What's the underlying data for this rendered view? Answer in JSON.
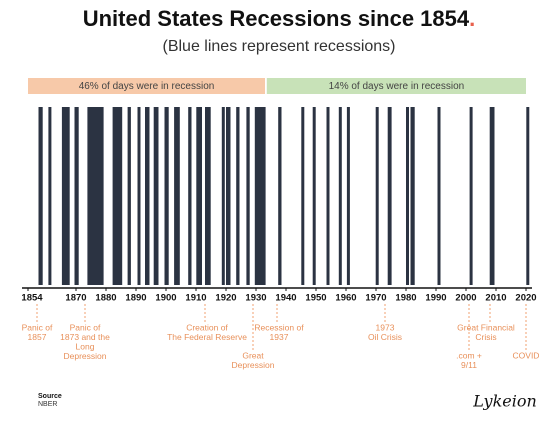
{
  "chart_data": {
    "type": "timeline",
    "title": "United States Recessions since 1854",
    "title_mark": ".",
    "subtitle": "(Blue lines represent recessions)",
    "color": "#2b3342",
    "xlim": [
      1852,
      2022
    ],
    "xticks": [
      1854,
      1870,
      1880,
      1890,
      1900,
      1910,
      1920,
      1930,
      1940,
      1950,
      1960,
      1970,
      1980,
      1990,
      2000,
      2010,
      2020
    ],
    "periods": [
      {
        "label": "46% of days were in recession",
        "start": 1854,
        "end": 1933,
        "color": "#f7c9a9"
      },
      {
        "label": "14% of days were in recession",
        "start": 1933.6,
        "end": 2020,
        "color": "#c8e2b8"
      }
    ],
    "recessions": [
      {
        "start": 1857.5,
        "end": 1858.9
      },
      {
        "start": 1860.8,
        "end": 1861.5
      },
      {
        "start": 1865.3,
        "end": 1867.9
      },
      {
        "start": 1869.5,
        "end": 1870.9
      },
      {
        "start": 1873.8,
        "end": 1879.2
      },
      {
        "start": 1882.2,
        "end": 1885.4
      },
      {
        "start": 1887.2,
        "end": 1888.3
      },
      {
        "start": 1890.5,
        "end": 1891.4
      },
      {
        "start": 1893.0,
        "end": 1894.5
      },
      {
        "start": 1895.9,
        "end": 1897.5
      },
      {
        "start": 1899.5,
        "end": 1900.9
      },
      {
        "start": 1902.7,
        "end": 1904.6
      },
      {
        "start": 1907.4,
        "end": 1908.5
      },
      {
        "start": 1910.1,
        "end": 1912.0
      },
      {
        "start": 1913.0,
        "end": 1914.9
      },
      {
        "start": 1918.6,
        "end": 1919.2
      },
      {
        "start": 1920.0,
        "end": 1921.5
      },
      {
        "start": 1923.4,
        "end": 1924.5
      },
      {
        "start": 1926.8,
        "end": 1927.9
      },
      {
        "start": 1929.6,
        "end": 1933.2
      },
      {
        "start": 1937.4,
        "end": 1938.5
      },
      {
        "start": 1945.1,
        "end": 1945.8
      },
      {
        "start": 1948.9,
        "end": 1949.8
      },
      {
        "start": 1953.5,
        "end": 1954.4
      },
      {
        "start": 1957.6,
        "end": 1958.3
      },
      {
        "start": 1960.3,
        "end": 1961.1
      },
      {
        "start": 1969.9,
        "end": 1970.9
      },
      {
        "start": 1973.9,
        "end": 1975.2
      },
      {
        "start": 1980.0,
        "end": 1980.5
      },
      {
        "start": 1981.5,
        "end": 1982.9
      },
      {
        "start": 1990.5,
        "end": 1991.2
      },
      {
        "start": 2001.2,
        "end": 2001.9
      },
      {
        "start": 2007.9,
        "end": 2009.5
      },
      {
        "start": 2020.1,
        "end": 2020.3
      }
    ],
    "annotations": [
      {
        "x": 1857,
        "lines": [
          "Panic of",
          "1857"
        ]
      },
      {
        "x": 1873,
        "lines": [
          "Panic of",
          "1873 and the",
          "Long",
          "Depression"
        ]
      },
      {
        "x": 1913,
        "lines": [
          "Creation of",
          "The Federal Reserve"
        ]
      },
      {
        "x": 1929,
        "lines": [
          "Great",
          "Depression"
        ]
      },
      {
        "x": 1937,
        "lines": [
          "Recession of",
          "1937"
        ]
      },
      {
        "x": 1973,
        "lines": [
          "1973",
          "Oil Crisis"
        ]
      },
      {
        "x": 2001,
        "lines": [
          ".com +",
          "9/11"
        ]
      },
      {
        "x": 2008,
        "lines": [
          "Great Financial",
          "Crisis"
        ]
      },
      {
        "x": 2020,
        "lines": [
          "COVID"
        ]
      }
    ],
    "source_label": "Source",
    "source": "NBER",
    "signature": "Lykeion"
  }
}
